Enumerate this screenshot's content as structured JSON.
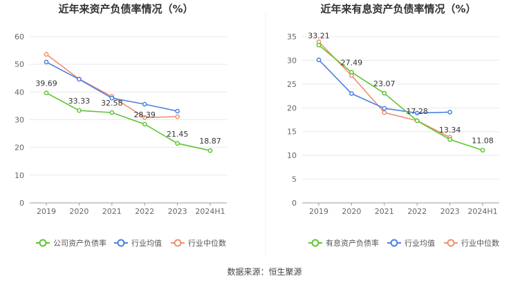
{
  "source_note": "数据来源：恒生聚源",
  "colors": {
    "company": "#5cc531",
    "avg": "#4a7fe0",
    "median": "#f28d6a"
  },
  "chart_data": [
    {
      "type": "line",
      "title": "近年来资产负债率情况（%）",
      "categories": [
        "2019",
        "2020",
        "2021",
        "2022",
        "2023",
        "2024H1"
      ],
      "ylim": [
        0,
        60
      ],
      "yticks": [
        0,
        10,
        20,
        30,
        40,
        50,
        60
      ],
      "legend_position": "bottom",
      "series": [
        {
          "name": "公司资产负债率",
          "color_key": "company",
          "labeled": true,
          "values": [
            39.69,
            33.33,
            32.58,
            28.39,
            21.45,
            18.87
          ]
        },
        {
          "name": "行业均值",
          "color_key": "avg",
          "labeled": false,
          "values": [
            50.8,
            44.6,
            37.8,
            35.6,
            33.1,
            null
          ]
        },
        {
          "name": "行业中位数",
          "color_key": "median",
          "labeled": false,
          "values": [
            53.6,
            44.7,
            38.4,
            30.8,
            31.1,
            null
          ]
        }
      ]
    },
    {
      "type": "line",
      "title": "近年来有息资产负债率情况（%）",
      "categories": [
        "2019",
        "2020",
        "2021",
        "2022",
        "2023",
        "2024H1"
      ],
      "ylim": [
        0,
        35
      ],
      "yticks": [
        0,
        5,
        10,
        15,
        20,
        25,
        30,
        35
      ],
      "legend_position": "bottom",
      "series": [
        {
          "name": "有息资产负债率",
          "color_key": "company",
          "labeled": true,
          "values": [
            33.21,
            27.49,
            23.07,
            17.28,
            13.34,
            11.08
          ]
        },
        {
          "name": "行业均值",
          "color_key": "avg",
          "labeled": false,
          "values": [
            30.1,
            23.0,
            19.9,
            18.9,
            19.1,
            null
          ]
        },
        {
          "name": "行业中位数",
          "color_key": "median",
          "labeled": false,
          "values": [
            33.9,
            26.8,
            19.0,
            17.3,
            13.8,
            null
          ]
        }
      ]
    }
  ]
}
